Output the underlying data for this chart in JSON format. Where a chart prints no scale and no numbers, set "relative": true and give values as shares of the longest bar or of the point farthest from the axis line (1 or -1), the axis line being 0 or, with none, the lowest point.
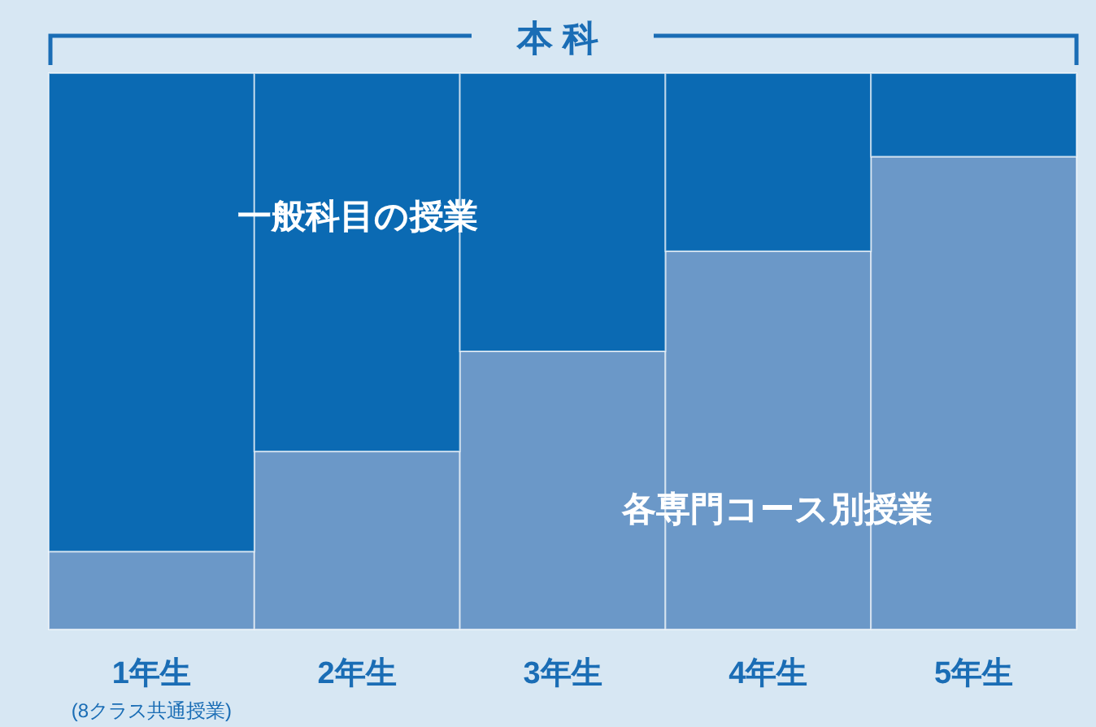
{
  "chart_data": {
    "type": "bar",
    "stacked": true,
    "relative": true,
    "title": "本科",
    "categories": [
      "1年生",
      "2年生",
      "3年生",
      "4年生",
      "5年生"
    ],
    "series": [
      {
        "name": "各専門コース別授業",
        "color": "#6b98c8",
        "values": [
          0.14,
          0.32,
          0.5,
          0.68,
          0.85
        ]
      },
      {
        "name": "一般科目の授業",
        "color": "#0b6ab3",
        "values": [
          0.86,
          0.68,
          0.5,
          0.32,
          0.15
        ]
      }
    ],
    "annotations": [
      "(8クラス共通授業)"
    ]
  }
}
